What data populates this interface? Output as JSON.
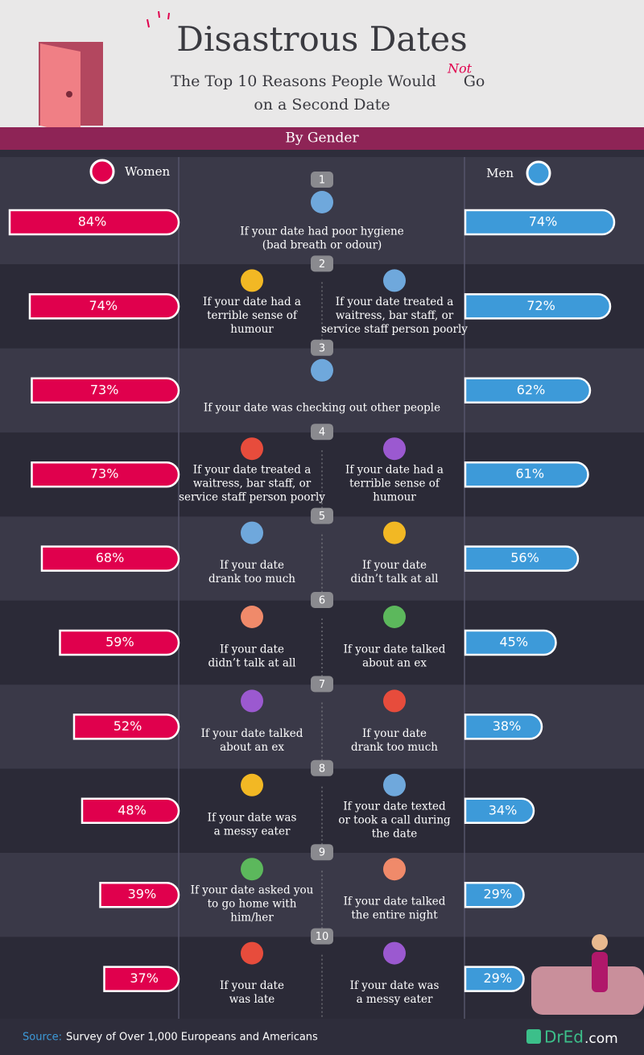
{
  "header": {
    "title": "Disastrous Dates",
    "subtitle_start": "The Top 10 Reasons People Would",
    "not": "Not",
    "subtitle_go": "Go",
    "subtitle_end": "on a Second Date",
    "section": "By Gender"
  },
  "chart_data": {
    "type": "bar",
    "categories": [
      "1",
      "2",
      "3",
      "4",
      "5",
      "6",
      "7",
      "8",
      "9",
      "10"
    ],
    "series": [
      {
        "name": "Women",
        "color": "#e0004d",
        "values": [
          84,
          74,
          73,
          73,
          68,
          59,
          52,
          48,
          39,
          37
        ],
        "value_labels": [
          "84%",
          "74%",
          "73%",
          "73%",
          "68%",
          "59%",
          "52%",
          "48%",
          "39%",
          "37%"
        ]
      },
      {
        "name": "Men",
        "color": "#3d9ad9",
        "values": [
          74,
          72,
          62,
          61,
          56,
          45,
          38,
          34,
          29,
          29
        ],
        "value_labels": [
          "74%",
          "72%",
          "62%",
          "61%",
          "56%",
          "45%",
          "38%",
          "34%",
          "29%",
          "29%"
        ]
      }
    ],
    "reasons": [
      {
        "shared": [
          "If your date had poor hygiene",
          "(bad breath or odour)"
        ]
      },
      {
        "women": [
          "If your date had a",
          "terrible sense of",
          "humour"
        ],
        "men": [
          "If your date treated a",
          "waitress, bar staff, or",
          "service staff person poorly"
        ]
      },
      {
        "shared": [
          "If your date was checking out other people"
        ]
      },
      {
        "women": [
          "If your date treated a",
          "waitress, bar staff, or",
          "service staff person poorly"
        ],
        "men": [
          "If your date had a",
          "terrible sense of",
          "humour"
        ]
      },
      {
        "women": [
          "If your date",
          "drank too much"
        ],
        "men": [
          "If your date",
          "didn’t talk at all"
        ]
      },
      {
        "women": [
          "If your date",
          "didn’t talk at all"
        ],
        "men": [
          "If your date talked",
          "about an ex"
        ]
      },
      {
        "women": [
          "If your date talked",
          "about an ex"
        ],
        "men": [
          "If your date",
          "drank too much"
        ]
      },
      {
        "women": [
          "If your date was",
          "a messy eater"
        ],
        "men": [
          "If your date texted",
          "or took a call during",
          "the date"
        ]
      },
      {
        "women": [
          "If your date asked you",
          "to go home with",
          "him/her"
        ],
        "men": [
          "If your date talked",
          "the entire night"
        ]
      },
      {
        "women": [
          "If your date",
          "was late"
        ],
        "men": [
          "If your date was",
          "a messy eater"
        ]
      }
    ]
  },
  "footer": {
    "source_label": "Source:",
    "source": "Survey of Over 1,000 Europeans and Americans",
    "logo": "DrEd",
    "logo_suffix": ".com"
  }
}
